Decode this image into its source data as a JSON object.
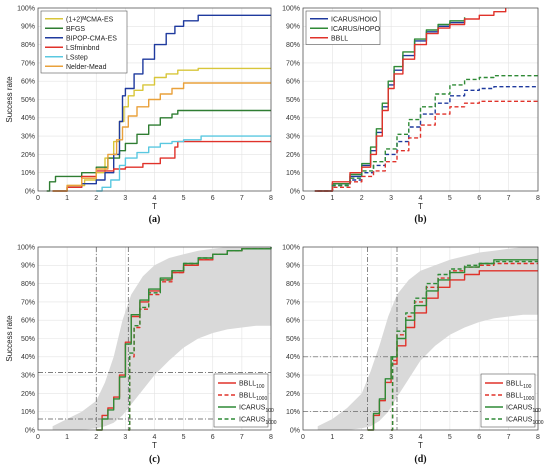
{
  "chart_data": [
    {
      "id": "a",
      "type": "line",
      "caption": "(a)",
      "xlabel": "T",
      "ylabel": "Success rate",
      "xlim": [
        0,
        8
      ],
      "ylim": [
        0,
        100
      ],
      "xticks": [
        "0",
        "1",
        "2",
        "3",
        "4",
        "5",
        "6",
        "7",
        "8"
      ],
      "yticks": [
        "0%",
        "10%",
        "20%",
        "30%",
        "40%",
        "50%",
        "60%",
        "70%",
        "80%",
        "90%",
        "100%"
      ],
      "grid": true,
      "legend": "top-left",
      "series": [
        {
          "name": "(1+2)ᴹCMA-ES",
          "color": "#d8c63a",
          "dash": false,
          "x": [
            0.5,
            1.0,
            1.6,
            2.0,
            2.3,
            2.6,
            2.8,
            2.95,
            3.1,
            3.3,
            3.6,
            4.0,
            4.4,
            4.8,
            5.5,
            8.0
          ],
          "y": [
            0,
            3,
            6,
            10,
            18,
            27,
            38,
            46,
            52,
            55,
            58,
            62,
            64,
            66,
            67,
            67
          ]
        },
        {
          "name": "BFGS",
          "color": "#2f7d32",
          "dash": false,
          "x": [
            0.3,
            0.4,
            0.6,
            1.0,
            1.5,
            2.0,
            2.4,
            2.8,
            3.0,
            3.4,
            3.8,
            4.2,
            4.6,
            4.8,
            8.0
          ],
          "y": [
            0,
            5,
            8,
            8,
            10,
            13,
            18,
            22,
            26,
            31,
            36,
            40,
            42,
            44,
            44
          ]
        },
        {
          "name": "BIPOP-CMA-ES",
          "color": "#1f3a9e",
          "dash": false,
          "x": [
            0.5,
            1.0,
            1.5,
            2.0,
            2.3,
            2.6,
            2.8,
            2.9,
            3.0,
            3.3,
            3.6,
            4.0,
            4.4,
            4.7,
            5.0,
            5.5,
            8.0
          ],
          "y": [
            0,
            2,
            4,
            6,
            10,
            20,
            38,
            52,
            56,
            64,
            72,
            80,
            86,
            90,
            93,
            96,
            96
          ]
        },
        {
          "name": "LSfminbnd",
          "color": "#e0322a",
          "dash": false,
          "x": [
            0.5,
            1.0,
            1.5,
            2.0,
            2.6,
            3.0,
            3.6,
            4.2,
            4.7,
            4.8,
            8.0
          ],
          "y": [
            0,
            2,
            8,
            11,
            12,
            13,
            15,
            18,
            24,
            27,
            27
          ]
        },
        {
          "name": "LSstep",
          "color": "#5ac8e0",
          "dash": false,
          "x": [
            2.0,
            2.2,
            2.5,
            2.8,
            3.0,
            3.4,
            3.8,
            4.2,
            4.6,
            5.0,
            5.6,
            8.0
          ],
          "y": [
            0,
            2,
            6,
            14,
            18,
            21,
            24,
            26,
            27,
            28,
            30,
            30
          ]
        },
        {
          "name": "Nelder-Mead",
          "color": "#e9a13b",
          "dash": false,
          "x": [
            0.5,
            1.0,
            1.5,
            2.0,
            2.4,
            2.7,
            2.9,
            3.1,
            3.4,
            3.8,
            4.2,
            4.6,
            5.0,
            8.0
          ],
          "y": [
            0,
            3,
            7,
            12,
            20,
            28,
            35,
            41,
            46,
            50,
            53,
            56,
            59,
            59
          ]
        }
      ]
    },
    {
      "id": "b",
      "type": "line",
      "caption": "(b)",
      "xlabel": "T",
      "ylabel": "",
      "xlim": [
        0,
        8
      ],
      "ylim": [
        0,
        100
      ],
      "xticks": [
        "0",
        "1",
        "2",
        "3",
        "4",
        "5",
        "6",
        "7",
        "8"
      ],
      "yticks": [
        "0%",
        "10%",
        "20%",
        "30%",
        "40%",
        "50%",
        "60%",
        "70%",
        "80%",
        "90%",
        "100%"
      ],
      "grid": true,
      "legend": "top-left",
      "series": [
        {
          "name": "ICARUS/HOIO",
          "color": "#1f3a9e",
          "dash": false,
          "x": [
            0.4,
            1.0,
            1.6,
            2.0,
            2.3,
            2.5,
            2.7,
            2.9,
            3.1,
            3.4,
            3.8,
            4.2,
            4.6,
            5.0,
            5.5
          ],
          "y": [
            0,
            4,
            8,
            14,
            22,
            32,
            46,
            58,
            66,
            74,
            82,
            87,
            90,
            92,
            94
          ]
        },
        {
          "name": "ICARUS/HOPO",
          "color": "#2f8a36",
          "dash": false,
          "x": [
            0.4,
            1.0,
            1.6,
            2.0,
            2.3,
            2.5,
            2.7,
            2.9,
            3.1,
            3.4,
            3.8,
            4.2,
            4.6,
            5.0,
            5.5
          ],
          "y": [
            0,
            4,
            9,
            15,
            24,
            34,
            48,
            60,
            68,
            76,
            83,
            88,
            91,
            93,
            95
          ]
        },
        {
          "name": "BBLL",
          "color": "#e0322a",
          "dash": false,
          "x": [
            0.4,
            1.0,
            1.6,
            2.0,
            2.3,
            2.5,
            2.7,
            2.9,
            3.1,
            3.4,
            3.8,
            4.2,
            4.6,
            5.0,
            5.5,
            6.0,
            6.5,
            6.9
          ],
          "y": [
            0,
            5,
            10,
            13,
            20,
            30,
            44,
            56,
            64,
            72,
            80,
            86,
            89,
            91,
            94,
            96,
            98,
            100
          ]
        },
        {
          "name": "",
          "color": "#1f3a9e",
          "dash": true,
          "x": [
            0.5,
            1.0,
            1.6,
            2.0,
            2.4,
            2.8,
            3.2,
            3.6,
            4.0,
            4.5,
            5.0,
            5.5,
            6.0,
            6.5,
            8.0
          ],
          "y": [
            0,
            3,
            6,
            10,
            14,
            20,
            27,
            35,
            42,
            48,
            52,
            55,
            56,
            57,
            57
          ]
        },
        {
          "name": "",
          "color": "#2f8a36",
          "dash": true,
          "x": [
            0.5,
            1.0,
            1.6,
            2.0,
            2.4,
            2.8,
            3.2,
            3.6,
            4.0,
            4.5,
            5.0,
            5.5,
            6.0,
            6.5,
            8.0
          ],
          "y": [
            0,
            3,
            7,
            11,
            16,
            23,
            31,
            39,
            46,
            53,
            58,
            61,
            62,
            63,
            63
          ]
        },
        {
          "name": "",
          "color": "#e0322a",
          "dash": true,
          "x": [
            0.5,
            1.0,
            1.6,
            2.0,
            2.4,
            2.8,
            3.2,
            3.6,
            4.0,
            4.5,
            5.0,
            5.5,
            6.0,
            8.0
          ],
          "y": [
            0,
            2,
            5,
            8,
            11,
            16,
            22,
            29,
            36,
            42,
            46,
            48,
            49,
            49
          ]
        }
      ]
    },
    {
      "id": "c",
      "type": "line",
      "caption": "(c)",
      "xlabel": "T",
      "ylabel": "Success rate",
      "xlim": [
        0,
        8
      ],
      "ylim": [
        0,
        100
      ],
      "xticks": [
        "0",
        "1",
        "2",
        "3",
        "4",
        "5",
        "6",
        "7",
        "8"
      ],
      "yticks": [
        "0%",
        "10%",
        "20%",
        "30%",
        "40%",
        "50%",
        "60%",
        "70%",
        "80%",
        "90%",
        "100%"
      ],
      "grid": true,
      "legend": "bottom-right",
      "band": {
        "x": [
          0.5,
          1.0,
          1.5,
          2.0,
          2.3,
          2.6,
          2.9,
          3.2,
          3.6,
          4.0,
          4.5,
          5.0,
          5.5,
          6.0,
          6.5,
          7.0,
          7.5,
          8.0
        ],
        "lower": [
          0,
          0,
          0,
          1,
          2,
          4,
          8,
          14,
          22,
          30,
          38,
          45,
          50,
          53,
          55,
          56,
          57,
          57
        ],
        "upper": [
          2,
          6,
          10,
          16,
          26,
          40,
          60,
          74,
          84,
          90,
          94,
          96,
          98,
          99,
          100,
          100,
          100,
          100
        ]
      },
      "vlines": [
        2.0,
        3.1
      ],
      "hlines": [
        6,
        31.5
      ],
      "series": [
        {
          "name": "BBLL100",
          "label": "BBLL",
          "sub": "100",
          "color": "#e0322a",
          "dash": false,
          "x": [
            2.0,
            2.2,
            2.4,
            2.6,
            2.8,
            3.0,
            3.2,
            3.5,
            3.8,
            4.2,
            4.6,
            5.0,
            5.5,
            6.0,
            6.5,
            7.0,
            8.0
          ],
          "y": [
            0,
            8,
            12,
            18,
            30,
            48,
            62,
            70,
            76,
            82,
            86,
            90,
            93,
            96,
            98,
            99,
            99
          ]
        },
        {
          "name": "BBLL1000",
          "label": "BBLL",
          "sub": "1000",
          "color": "#e0322a",
          "dash": true,
          "x": [
            3.1,
            3.15,
            3.3,
            3.5,
            3.8,
            4.2,
            4.6,
            5.0,
            5.5,
            6.0,
            6.5,
            7.0,
            8.0
          ],
          "y": [
            0,
            40,
            56,
            66,
            74,
            81,
            86,
            90,
            93,
            96,
            98,
            99,
            99
          ]
        },
        {
          "name": "ICARUS100",
          "label": "ICARUS",
          "sub": "100",
          "color": "#2f8a36",
          "dash": false,
          "x": [
            2.0,
            2.2,
            2.4,
            2.6,
            2.8,
            3.0,
            3.2,
            3.5,
            3.8,
            4.2,
            4.6,
            5.0,
            5.5,
            6.0,
            6.5,
            7.0,
            8.0
          ],
          "y": [
            0,
            6,
            11,
            17,
            29,
            47,
            63,
            71,
            77,
            83,
            87,
            91,
            94,
            96,
            98,
            99,
            100
          ]
        },
        {
          "name": "ICARUS1000",
          "label": "ICARUS",
          "sub": "1000",
          "color": "#2f8a36",
          "dash": true,
          "x": [
            3.1,
            3.15,
            3.3,
            3.5,
            3.8,
            4.2,
            4.6,
            5.0,
            5.5,
            6.0,
            6.5,
            7.0,
            8.0
          ],
          "y": [
            0,
            42,
            57,
            67,
            75,
            82,
            87,
            91,
            94,
            96,
            98,
            99,
            100
          ]
        }
      ]
    },
    {
      "id": "d",
      "type": "line",
      "caption": "(d)",
      "xlabel": "T",
      "ylabel": "",
      "xlim": [
        0,
        8
      ],
      "ylim": [
        0,
        100
      ],
      "xticks": [
        "0",
        "1",
        "2",
        "3",
        "4",
        "5",
        "6",
        "7",
        "8"
      ],
      "yticks": [
        "0%",
        "10%",
        "20%",
        "30%",
        "40%",
        "50%",
        "60%",
        "70%",
        "80%",
        "90%",
        "100%"
      ],
      "grid": true,
      "legend": "bottom-right",
      "band": {
        "x": [
          0.5,
          1.0,
          1.5,
          2.0,
          2.3,
          2.6,
          2.9,
          3.2,
          3.6,
          4.0,
          4.5,
          5.0,
          5.5,
          6.0,
          6.5,
          7.0,
          7.5,
          8.0
        ],
        "lower": [
          0,
          0,
          0,
          1,
          2,
          5,
          10,
          18,
          28,
          38,
          46,
          52,
          56,
          59,
          61,
          62,
          63,
          63
        ],
        "upper": [
          2,
          6,
          12,
          20,
          32,
          46,
          62,
          74,
          82,
          87,
          90,
          93,
          95,
          97,
          98,
          99,
          100,
          100
        ]
      },
      "vlines": [
        2.2,
        3.2
      ],
      "hlines": [
        10,
        40
      ],
      "series": [
        {
          "name": "BBLL100",
          "label": "BBLL",
          "sub": "100",
          "color": "#e0322a",
          "dash": false,
          "x": [
            2.2,
            2.4,
            2.6,
            2.8,
            3.0,
            3.2,
            3.5,
            3.8,
            4.2,
            4.6,
            5.0,
            5.5,
            6.0,
            8.0
          ],
          "y": [
            0,
            8,
            16,
            26,
            36,
            46,
            56,
            64,
            72,
            78,
            82,
            85,
            87,
            87
          ]
        },
        {
          "name": "BBLL1000",
          "label": "BBLL",
          "sub": "1000",
          "color": "#e0322a",
          "dash": true,
          "x": [
            3.0,
            3.05,
            3.2,
            3.5,
            3.8,
            4.2,
            4.6,
            5.0,
            5.5,
            6.0,
            6.5,
            8.0
          ],
          "y": [
            0,
            38,
            52,
            62,
            70,
            78,
            83,
            87,
            89,
            90,
            91,
            91
          ]
        },
        {
          "name": "ICARUS100",
          "label": "ICARUS",
          "sub": "100",
          "color": "#2f8a36",
          "dash": false,
          "x": [
            2.2,
            2.4,
            2.6,
            2.8,
            3.0,
            3.2,
            3.5,
            3.8,
            4.2,
            4.6,
            5.0,
            5.5,
            6.0,
            6.5,
            8.0
          ],
          "y": [
            0,
            9,
            17,
            28,
            40,
            50,
            60,
            68,
            76,
            82,
            86,
            89,
            91,
            93,
            93
          ]
        },
        {
          "name": "ICARUS1000",
          "label": "ICARUS",
          "sub": "1000",
          "color": "#2f8a36",
          "dash": true,
          "x": [
            3.0,
            3.05,
            3.2,
            3.5,
            3.8,
            4.2,
            4.6,
            5.0,
            5.5,
            6.0,
            6.5,
            8.0
          ],
          "y": [
            0,
            40,
            54,
            64,
            72,
            80,
            85,
            88,
            90,
            91,
            92,
            92
          ]
        }
      ]
    }
  ],
  "colors": {
    "band": "#d9d9d9",
    "refline": "#555555",
    "frame": "#444444"
  }
}
